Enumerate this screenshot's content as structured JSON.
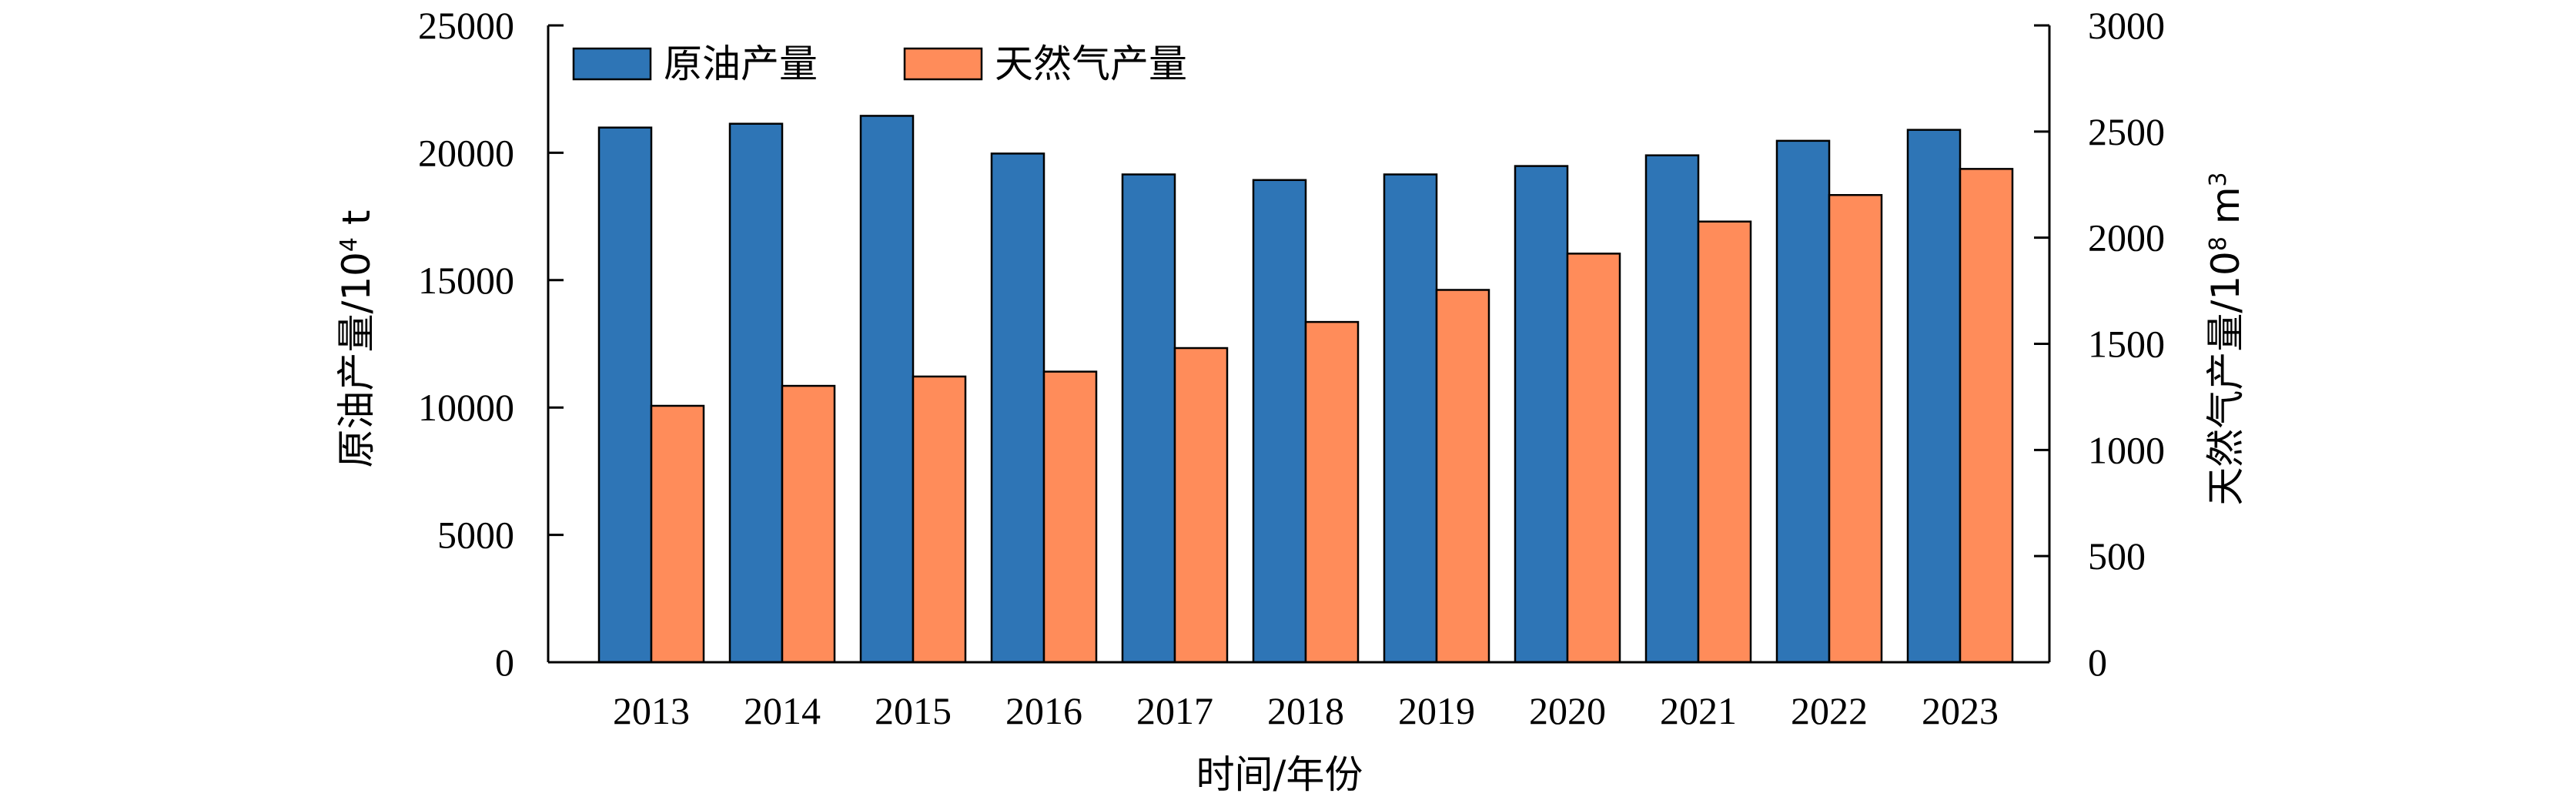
{
  "chart_data": {
    "type": "bar",
    "categories": [
      "2013",
      "2014",
      "2015",
      "2016",
      "2017",
      "2018",
      "2019",
      "2020",
      "2021",
      "2022",
      "2023"
    ],
    "series": [
      {
        "name": "原油产量",
        "axis": "left",
        "color": "#2E75B6",
        "values": [
          20990,
          21140,
          21450,
          19970,
          19150,
          18930,
          19150,
          19480,
          19900,
          20470,
          20900
        ]
      },
      {
        "name": "天然气产量",
        "axis": "right",
        "color": "#FF8C5A",
        "values": [
          1208,
          1302,
          1346,
          1369,
          1480,
          1603,
          1754,
          1925,
          2076,
          2201,
          2324
        ]
      }
    ],
    "xlabel": "时间/年份",
    "ylabel_left": {
      "main": "原油产量/10",
      "sup": "4",
      "tail": " t"
    },
    "ylabel_right": {
      "main": "天然气产量/10",
      "sup": "8",
      "tail": " m",
      "sup2": "3"
    },
    "ylim_left": [
      0,
      25000
    ],
    "ylim_right": [
      0,
      3000
    ],
    "yticks_left": [
      "0",
      "5000",
      "10000",
      "15000",
      "20000",
      "25000"
    ],
    "yticks_right": [
      "0",
      "500",
      "1000",
      "1500",
      "2000",
      "2500",
      "3000"
    ],
    "grid": false,
    "legend_position": "top-left"
  }
}
